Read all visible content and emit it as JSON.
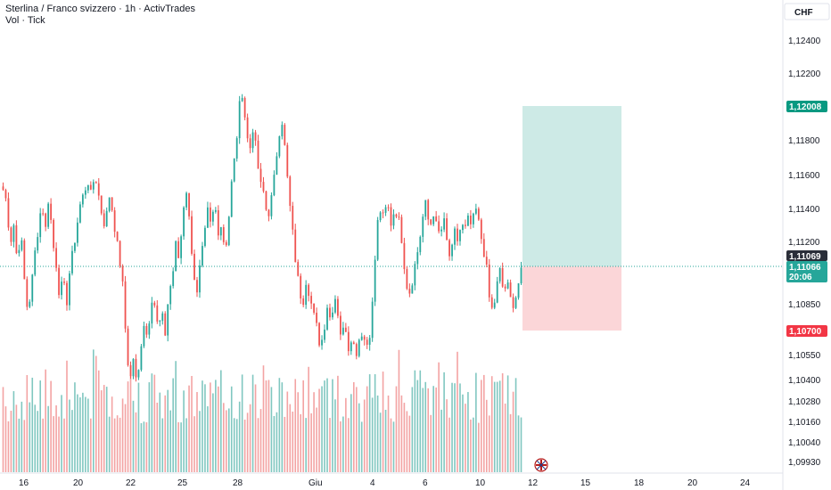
{
  "header": {
    "title": "Sterlina / Franco svizzero · 1h · ActivTrades",
    "indicator": "Vol · Tick"
  },
  "currency_button": "CHF",
  "colors": {
    "up": "#26a69a",
    "down": "#ef5350",
    "up_vol": "#80c7c0",
    "down_vol": "#f3a3a3",
    "profit_zone": "#cdeae6",
    "loss_zone": "#fbd6d8",
    "current_line": "#26a69a",
    "prev_close": "#2a2e39",
    "target": "#089981",
    "stop": "#f23645"
  },
  "chart_data": {
    "type": "candlestick",
    "price_axis": {
      "ticks": [
        "1,12400",
        "1,12200",
        "1,11800",
        "1,11600",
        "1,11400",
        "1,11200",
        "1,10850",
        "1,10550",
        "1,10400",
        "1,10280",
        "1,10160",
        "1,10040",
        "1,09930"
      ]
    },
    "x_ticks": [
      "16",
      "20",
      "22",
      "25",
      "28",
      "Giu",
      "4",
      "6",
      "10",
      "12",
      "15",
      "18",
      "20",
      "24"
    ],
    "markers": {
      "target": {
        "label": "1,12008",
        "value": 1.12008
      },
      "last": {
        "label": "1,11069",
        "value": 1.11069
      },
      "current": {
        "label": "1,11066",
        "value": 1.11066,
        "countdown": "20:06"
      },
      "stop": {
        "label": "1,10700",
        "value": 1.107
      }
    },
    "anchors": [
      1.1152,
      1.1145,
      1.112,
      1.1132,
      1.111,
      1.1128,
      1.11,
      1.108,
      1.1095,
      1.1115,
      1.113,
      1.1145,
      1.1128,
      1.115,
      1.1122,
      1.111,
      1.109,
      1.11,
      1.1085,
      1.1107,
      1.1118,
      1.1132,
      1.1145,
      1.115,
      1.1158,
      1.1148,
      1.1162,
      1.115,
      1.1138,
      1.113,
      1.115,
      1.114,
      1.1125,
      1.1112,
      1.1095,
      1.106,
      1.104,
      1.1055,
      1.1035,
      1.106,
      1.1075,
      1.1065,
      1.109,
      1.1085,
      1.107,
      1.108,
      1.1068,
      1.1092,
      1.11,
      1.112,
      1.111,
      1.114,
      1.1152,
      1.113,
      1.1105,
      1.109,
      1.111,
      1.1122,
      1.114,
      1.113,
      1.1145,
      1.1128,
      1.1132,
      1.1115,
      1.1135,
      1.116,
      1.1175,
      1.12,
      1.121,
      1.1185,
      1.1175,
      1.119,
      1.117,
      1.1155,
      1.115,
      1.1135,
      1.1145,
      1.116,
      1.118,
      1.1195,
      1.1175,
      1.115,
      1.113,
      1.111,
      1.1095,
      1.1085,
      1.11,
      1.109,
      1.108,
      1.1072,
      1.106,
      1.107,
      1.1085,
      1.1075,
      1.1092,
      1.108,
      1.1065,
      1.1075,
      1.106,
      1.1068,
      1.1055,
      1.1065,
      1.107,
      1.106,
      1.1068,
      1.109,
      1.113,
      1.114,
      1.1135,
      1.1145,
      1.1132,
      1.114,
      1.1138,
      1.1125,
      1.1105,
      1.109,
      1.1098,
      1.111,
      1.112,
      1.1135,
      1.1145,
      1.1128,
      1.114,
      1.113,
      1.1125,
      1.1135,
      1.112,
      1.111,
      1.1128,
      1.1122,
      1.1132,
      1.1128,
      1.1135,
      1.113,
      1.1142,
      1.1132,
      1.112,
      1.111,
      1.1088,
      1.108,
      1.1095,
      1.1105,
      1.1092,
      1.1098,
      1.1088,
      1.1085,
      1.1095,
      1.1106
    ]
  }
}
